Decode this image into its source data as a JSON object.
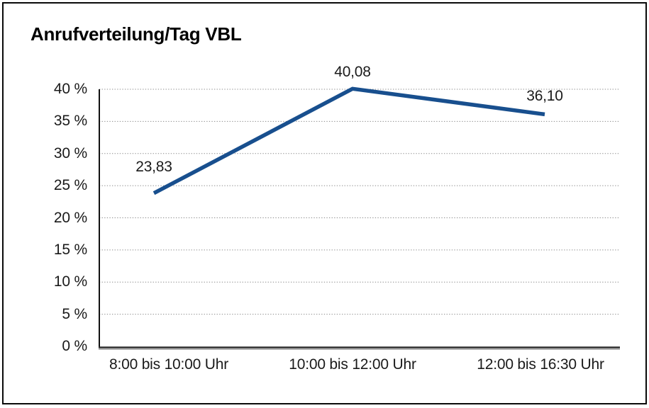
{
  "title": "Anrufverteilung/Tag VBL",
  "chart_data": {
    "type": "line",
    "title": "Anrufverteilung/Tag VBL",
    "categories": [
      "8:00 bis 10:00 Uhr",
      "10:00 bis 12:00 Uhr",
      "12:00 bis 16:30 Uhr"
    ],
    "values": [
      23.83,
      40.08,
      36.1
    ],
    "value_labels": [
      "23,83",
      "40,08",
      "36,10"
    ],
    "xlabel": "",
    "ylabel": "",
    "ylim": [
      0,
      40
    ],
    "ytick_step": 5,
    "ytick_labels": [
      "0 %",
      "5 %",
      "10 %",
      "15 %",
      "20 %",
      "25 %",
      "30 %",
      "35 %",
      "40 %"
    ],
    "grid": true,
    "gridline_style": "dotted",
    "legend_position": "none",
    "colors": {
      "line": "#184f8e",
      "gridline": "#888888",
      "axis": "#2e2e2e",
      "axis_shadow": "#9a9a9a",
      "text": "#1a1a1a"
    }
  }
}
